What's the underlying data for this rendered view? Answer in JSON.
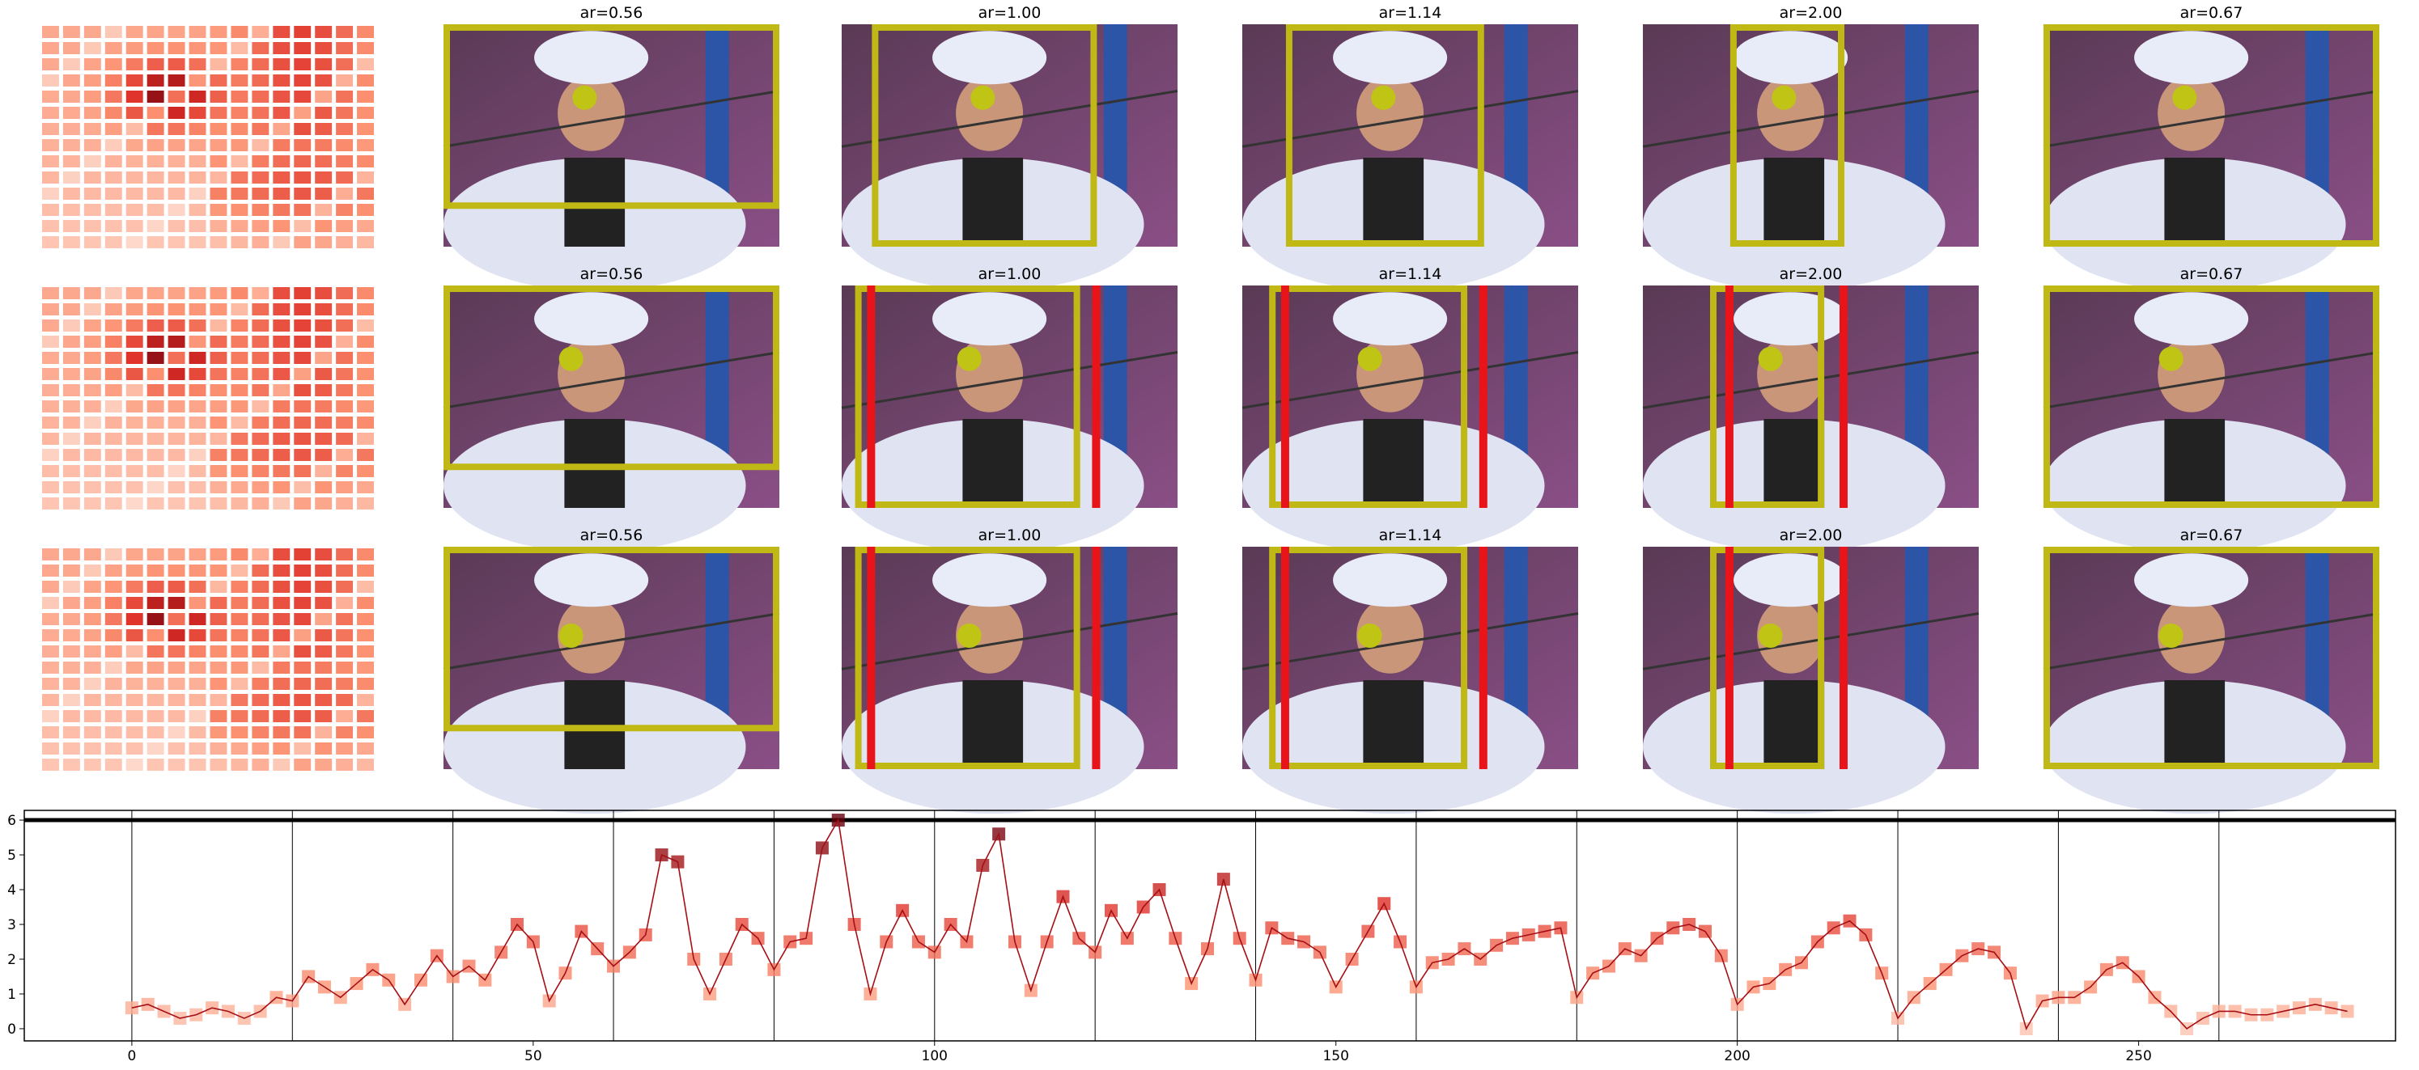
{
  "panels": {
    "rows": [
      {
        "titles": [
          "ar=0.56",
          "ar=1.00",
          "ar=1.14",
          "ar=2.00",
          "ar=0.67"
        ]
      },
      {
        "titles": [
          "ar=0.56",
          "ar=1.00",
          "ar=1.14",
          "ar=2.00",
          "ar=0.67"
        ]
      },
      {
        "titles": [
          "ar=0.56",
          "ar=1.00",
          "ar=1.14",
          "ar=2.00",
          "ar=0.67"
        ]
      }
    ]
  },
  "chart_data": {
    "type": "line",
    "x": [
      0,
      2,
      4,
      6,
      8,
      10,
      12,
      14,
      16,
      18,
      20,
      22,
      24,
      26,
      28,
      30,
      32,
      34,
      36,
      38,
      40,
      42,
      44,
      46,
      48,
      50,
      52,
      54,
      56,
      58,
      60,
      62,
      64,
      66,
      68,
      70,
      72,
      74,
      76,
      78,
      80,
      82,
      84,
      86,
      88,
      90,
      92,
      94,
      96,
      98,
      100,
      102,
      104,
      106,
      108,
      110,
      112,
      114,
      116,
      118,
      120,
      122,
      124,
      126,
      128,
      130,
      132,
      134,
      136,
      138,
      140,
      142,
      144,
      146,
      148,
      150,
      152,
      154,
      156,
      158,
      160,
      162,
      164,
      166,
      168,
      170,
      172,
      174,
      176,
      178,
      180,
      182,
      184,
      186,
      188,
      190,
      192,
      194,
      196,
      198,
      200,
      202,
      204,
      206,
      208,
      210,
      212,
      214,
      216,
      218,
      220,
      222,
      224,
      226,
      228,
      230,
      232,
      234,
      236,
      238,
      240,
      242,
      244,
      246,
      248,
      250,
      252,
      254,
      256,
      258,
      260,
      262,
      264,
      266,
      268,
      270,
      272,
      274,
      276
    ],
    "values": [
      0.6,
      0.7,
      0.5,
      0.3,
      0.4,
      0.6,
      0.5,
      0.3,
      0.5,
      0.9,
      0.8,
      1.5,
      1.2,
      0.9,
      1.3,
      1.7,
      1.4,
      0.7,
      1.4,
      2.1,
      1.5,
      1.8,
      1.4,
      2.2,
      3.0,
      2.5,
      0.8,
      1.6,
      2.8,
      2.3,
      1.8,
      2.2,
      2.7,
      5.0,
      4.8,
      2.0,
      1.0,
      2.0,
      3.0,
      2.6,
      1.7,
      2.5,
      2.6,
      5.2,
      6.0,
      3.0,
      1.0,
      2.5,
      3.4,
      2.5,
      2.2,
      3.0,
      2.5,
      4.7,
      5.6,
      2.5,
      1.1,
      2.5,
      3.8,
      2.6,
      2.2,
      3.4,
      2.6,
      3.5,
      4.0,
      2.6,
      1.3,
      2.3,
      4.3,
      2.6,
      1.4,
      2.9,
      2.6,
      2.5,
      2.2,
      1.2,
      2.0,
      2.8,
      3.6,
      2.5,
      1.2,
      1.9,
      2.0,
      2.3,
      2.0,
      2.4,
      2.6,
      2.7,
      2.8,
      2.9,
      0.9,
      1.6,
      1.8,
      2.3,
      2.1,
      2.6,
      2.9,
      3.0,
      2.8,
      2.1,
      0.7,
      1.2,
      1.3,
      1.7,
      1.9,
      2.5,
      2.9,
      3.1,
      2.7,
      1.6,
      0.3,
      0.9,
      1.3,
      1.7,
      2.1,
      2.3,
      2.2,
      1.6,
      0.0,
      0.8,
      0.9,
      0.9,
      1.2,
      1.7,
      1.9,
      1.5,
      0.9,
      0.5,
      0.0,
      0.3,
      0.5,
      0.5,
      0.4,
      0.4,
      0.5,
      0.6,
      0.7,
      0.6,
      0.5
    ],
    "color": "#a50f15",
    "vlines": [
      0,
      20,
      40,
      60,
      80,
      100,
      120,
      140,
      160,
      180,
      200,
      220,
      240,
      260
    ],
    "hline": 6,
    "xlim": [
      -13.4,
      282
    ],
    "ylim": [
      -0.35,
      6.28
    ],
    "xticks": [
      0,
      50,
      100,
      150,
      200,
      250
    ],
    "yticks": [
      0,
      1,
      2,
      3,
      4,
      5,
      6
    ]
  }
}
